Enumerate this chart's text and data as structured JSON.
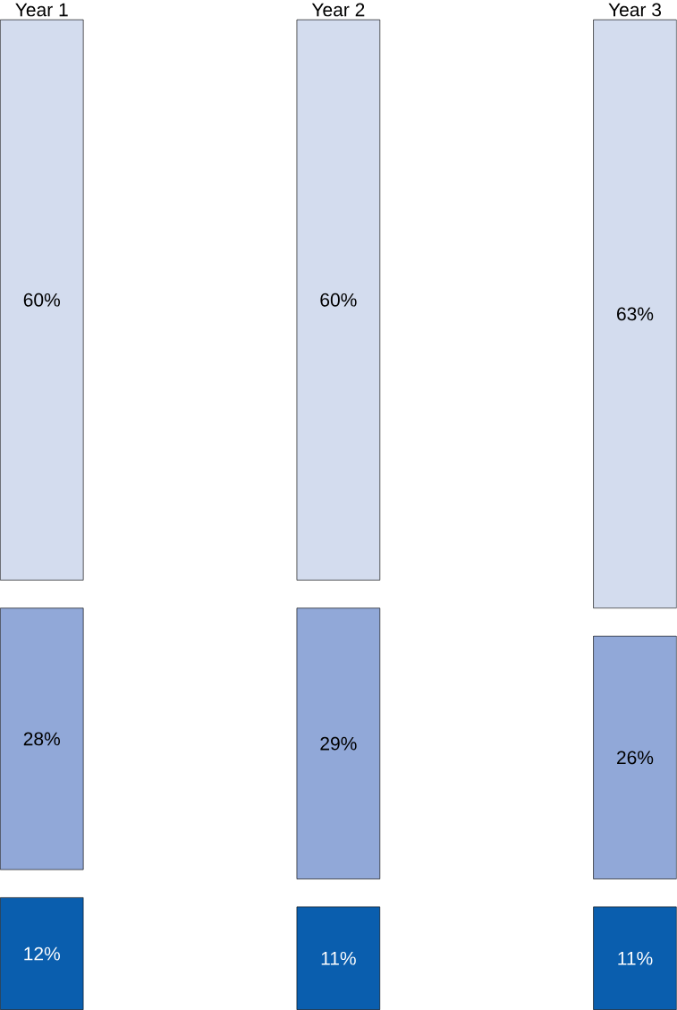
{
  "chart_data": {
    "type": "other",
    "categories": [
      "Year 1",
      "Year 2",
      "Year 3"
    ],
    "series": [
      {
        "color": "#0a5eae",
        "values": [
          12,
          11,
          11
        ],
        "value_labels": [
          "12%",
          "11%",
          "11%"
        ]
      },
      {
        "color": "#91a8d8",
        "values": [
          28,
          29,
          26
        ],
        "value_labels": [
          "28%",
          "29%",
          "26%"
        ]
      },
      {
        "color": "#d3dcee",
        "values": [
          60,
          60,
          63
        ],
        "value_labels": [
          "60%",
          "60%",
          "63%"
        ]
      }
    ]
  }
}
